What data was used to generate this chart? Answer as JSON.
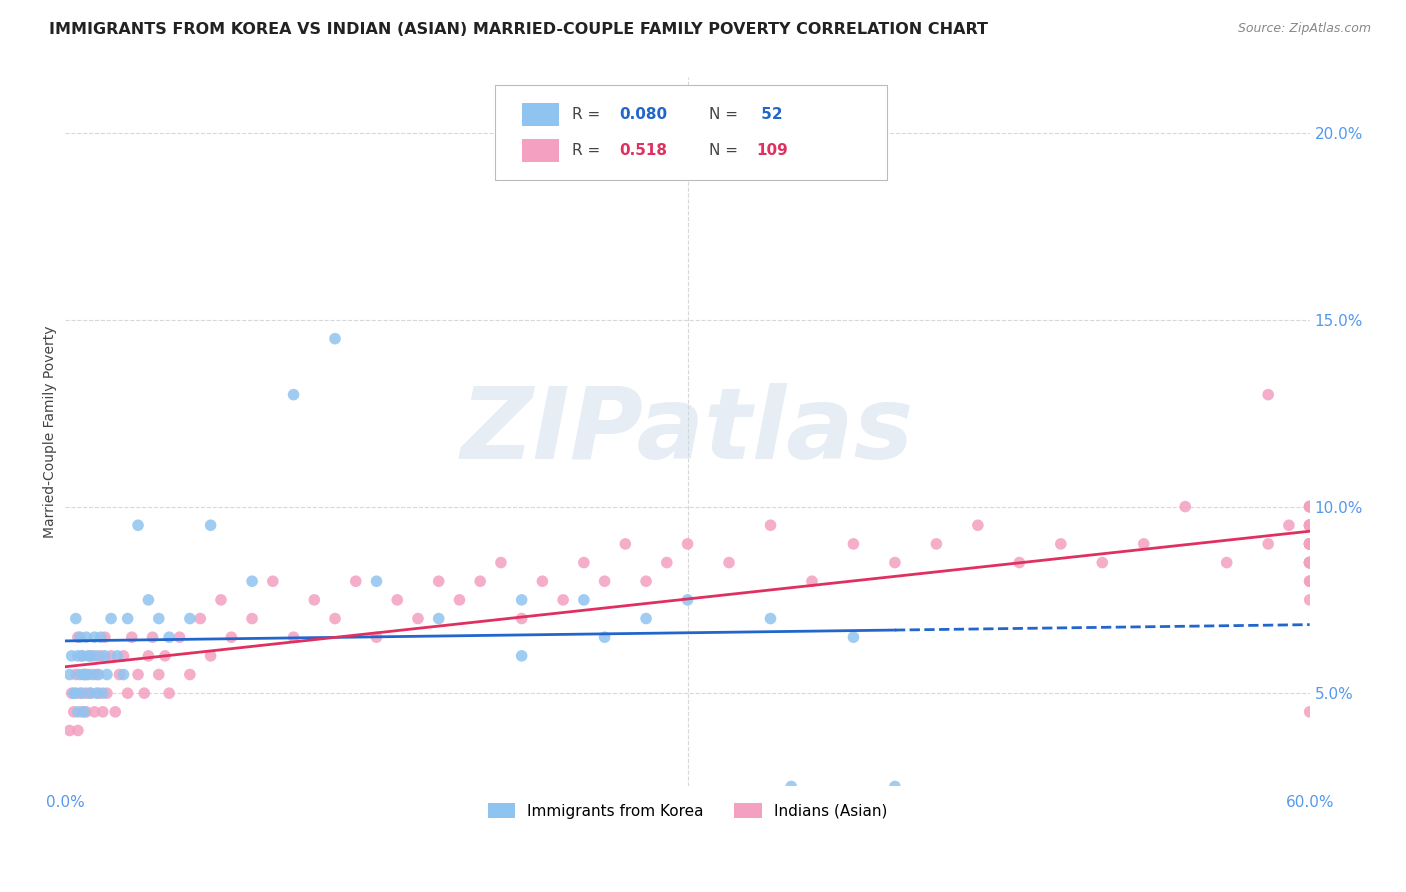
{
  "title": "IMMIGRANTS FROM KOREA VS INDIAN (ASIAN) MARRIED-COUPLE FAMILY POVERTY CORRELATION CHART",
  "source": "Source: ZipAtlas.com",
  "ylabel": "Married-Couple Family Poverty",
  "xlim": [
    0.0,
    0.6
  ],
  "ylim": [
    0.025,
    0.215
  ],
  "xtick_positions": [
    0.0,
    0.6
  ],
  "xticklabels": [
    "0.0%",
    "60.0%"
  ],
  "yticks_right": [
    0.05,
    0.1,
    0.15,
    0.2
  ],
  "yticklabels_right": [
    "5.0%",
    "10.0%",
    "15.0%",
    "20.0%"
  ],
  "korea_color": "#90C4F0",
  "india_color": "#F4A0C0",
  "trendline_korea_color": "#2266CC",
  "trendline_india_color": "#E03060",
  "korea_R": 0.08,
  "korea_N": 52,
  "india_R": 0.518,
  "india_N": 109,
  "legend_korea": "Immigrants from Korea",
  "legend_india": "Indians (Asian)",
  "watermark": "ZIPatlas",
  "background_color": "#ffffff",
  "grid_color": "#d8d8d8",
  "axis_label_color": "#5599EE",
  "title_color": "#222222",
  "source_color": "#888888",
  "korea_x": [
    0.002,
    0.003,
    0.004,
    0.005,
    0.005,
    0.006,
    0.006,
    0.007,
    0.007,
    0.008,
    0.008,
    0.009,
    0.009,
    0.01,
    0.01,
    0.011,
    0.012,
    0.012,
    0.013,
    0.014,
    0.015,
    0.015,
    0.016,
    0.017,
    0.018,
    0.019,
    0.02,
    0.022,
    0.025,
    0.028,
    0.03,
    0.035,
    0.04,
    0.045,
    0.05,
    0.06,
    0.07,
    0.09,
    0.11,
    0.13,
    0.15,
    0.18,
    0.22,
    0.26,
    0.3,
    0.34,
    0.38,
    0.22,
    0.25,
    0.28,
    0.35,
    0.4
  ],
  "korea_y": [
    0.055,
    0.06,
    0.05,
    0.07,
    0.05,
    0.06,
    0.045,
    0.055,
    0.065,
    0.05,
    0.06,
    0.055,
    0.045,
    0.065,
    0.055,
    0.06,
    0.05,
    0.06,
    0.055,
    0.065,
    0.05,
    0.06,
    0.055,
    0.065,
    0.05,
    0.06,
    0.055,
    0.07,
    0.06,
    0.055,
    0.07,
    0.095,
    0.075,
    0.07,
    0.065,
    0.07,
    0.095,
    0.08,
    0.13,
    0.145,
    0.08,
    0.07,
    0.075,
    0.065,
    0.075,
    0.07,
    0.065,
    0.06,
    0.075,
    0.07,
    0.025,
    0.025
  ],
  "india_x": [
    0.002,
    0.003,
    0.004,
    0.005,
    0.006,
    0.006,
    0.007,
    0.008,
    0.008,
    0.009,
    0.01,
    0.01,
    0.011,
    0.012,
    0.013,
    0.014,
    0.015,
    0.016,
    0.017,
    0.018,
    0.019,
    0.02,
    0.022,
    0.024,
    0.026,
    0.028,
    0.03,
    0.032,
    0.035,
    0.038,
    0.04,
    0.042,
    0.045,
    0.048,
    0.05,
    0.055,
    0.06,
    0.065,
    0.07,
    0.075,
    0.08,
    0.09,
    0.1,
    0.11,
    0.12,
    0.13,
    0.14,
    0.15,
    0.16,
    0.17,
    0.18,
    0.19,
    0.2,
    0.21,
    0.22,
    0.23,
    0.24,
    0.25,
    0.26,
    0.27,
    0.28,
    0.29,
    0.3,
    0.32,
    0.34,
    0.36,
    0.38,
    0.4,
    0.42,
    0.44,
    0.46,
    0.48,
    0.5,
    0.52,
    0.54,
    0.56,
    0.58,
    0.58,
    0.59,
    0.6,
    0.6,
    0.6,
    0.6,
    0.6,
    0.6,
    0.6,
    0.6,
    0.6,
    0.6,
    0.6,
    0.6,
    0.6,
    0.6,
    0.6,
    0.6,
    0.6,
    0.6,
    0.6,
    0.6,
    0.6,
    0.6,
    0.6,
    0.6,
    0.6,
    0.6,
    0.6,
    0.6,
    0.6,
    0.6
  ],
  "india_y": [
    0.04,
    0.05,
    0.045,
    0.055,
    0.04,
    0.065,
    0.05,
    0.045,
    0.06,
    0.055,
    0.05,
    0.045,
    0.055,
    0.05,
    0.06,
    0.045,
    0.055,
    0.05,
    0.06,
    0.045,
    0.065,
    0.05,
    0.06,
    0.045,
    0.055,
    0.06,
    0.05,
    0.065,
    0.055,
    0.05,
    0.06,
    0.065,
    0.055,
    0.06,
    0.05,
    0.065,
    0.055,
    0.07,
    0.06,
    0.075,
    0.065,
    0.07,
    0.08,
    0.065,
    0.075,
    0.07,
    0.08,
    0.065,
    0.075,
    0.07,
    0.08,
    0.075,
    0.08,
    0.085,
    0.07,
    0.08,
    0.075,
    0.085,
    0.08,
    0.09,
    0.08,
    0.085,
    0.09,
    0.085,
    0.095,
    0.08,
    0.09,
    0.085,
    0.09,
    0.095,
    0.085,
    0.09,
    0.085,
    0.09,
    0.1,
    0.085,
    0.13,
    0.09,
    0.095,
    0.08,
    0.095,
    0.1,
    0.085,
    0.09,
    0.095,
    0.085,
    0.09,
    0.095,
    0.045,
    0.075,
    0.085,
    0.09,
    0.1,
    0.085,
    0.095,
    0.09,
    0.1,
    0.085,
    0.09,
    0.095,
    0.1,
    0.09,
    0.085,
    0.095,
    0.09,
    0.08,
    0.095,
    0.085,
    0.09
  ]
}
